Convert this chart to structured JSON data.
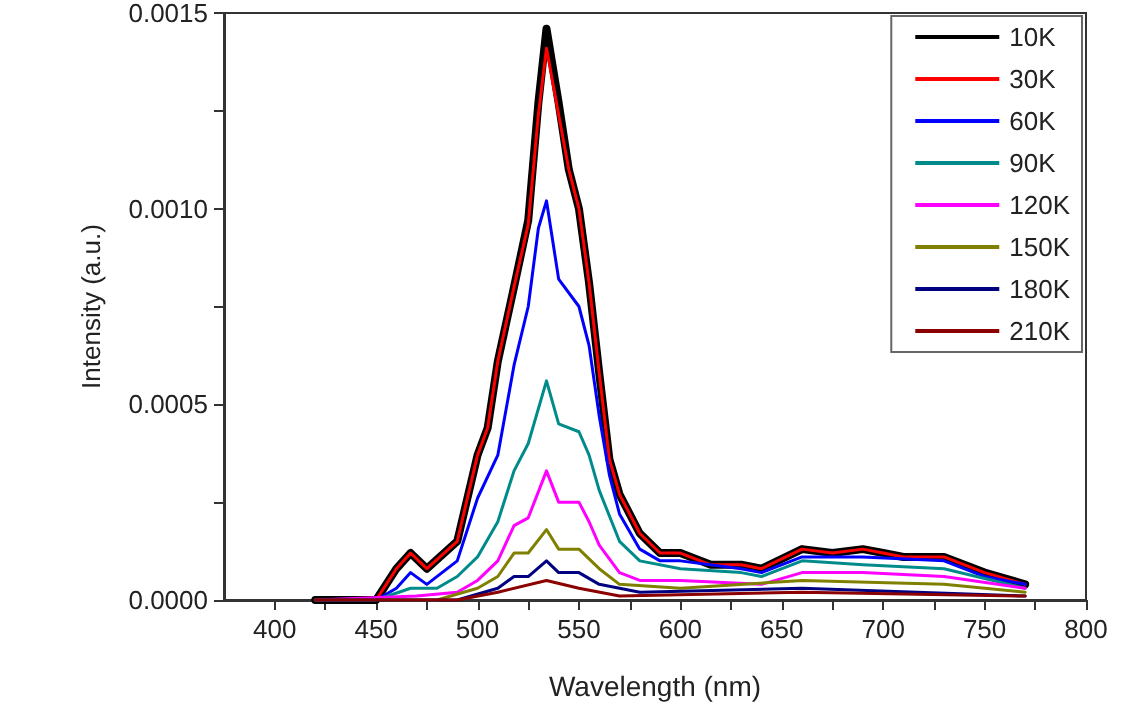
{
  "chart_data": {
    "type": "line",
    "xlabel": "Wavelength (nm)",
    "ylabel": "Intensity (a.u.)",
    "xlim": [
      375,
      800
    ],
    "xticks": [
      {
        "value": 400,
        "label": "400"
      },
      {
        "value": 425,
        "label": null
      },
      {
        "value": 450,
        "label": "450"
      },
      {
        "value": 475,
        "label": null
      },
      {
        "value": 500,
        "label": "500"
      },
      {
        "value": 525,
        "label": null
      },
      {
        "value": 550,
        "label": "550"
      },
      {
        "value": 575,
        "label": null
      },
      {
        "value": 600,
        "label": "600"
      },
      {
        "value": 625,
        "label": null
      },
      {
        "value": 650,
        "label": "650"
      },
      {
        "value": 675,
        "label": null
      },
      {
        "value": 700,
        "label": "700"
      },
      {
        "value": 725,
        "label": null
      },
      {
        "value": 750,
        "label": "750"
      },
      {
        "value": 775,
        "label": null
      },
      {
        "value": 800,
        "label": "800"
      }
    ],
    "ylim": [
      0,
      0.0015
    ],
    "yticks": [
      {
        "value": 0,
        "label": "0.0000"
      },
      {
        "value": 0.00025,
        "label": null
      },
      {
        "value": 0.0005,
        "label": "0.0005"
      },
      {
        "value": 0.00075,
        "label": null
      },
      {
        "value": 0.001,
        "label": "0.0010"
      },
      {
        "value": 0.00125,
        "label": null
      },
      {
        "value": 0.0015,
        "label": "0.0015"
      }
    ],
    "grid": false,
    "legend": "top right",
    "marker": "none",
    "line_style": "solid",
    "series": [
      {
        "name": "10K",
        "color": "#000000",
        "x": [
          420,
          450,
          460,
          467,
          475,
          490,
          500,
          505,
          510,
          518,
          525,
          530,
          534,
          540,
          545,
          550,
          555,
          560,
          565,
          570,
          580,
          590,
          600,
          615,
          630,
          640,
          660,
          675,
          690,
          700,
          710,
          730,
          750,
          770
        ],
        "values": [
          0,
          0,
          8e-05,
          0.00012,
          8e-05,
          0.00015,
          0.00037,
          0.00044,
          0.00061,
          0.0008,
          0.00097,
          0.00127,
          0.00146,
          0.00127,
          0.0011,
          0.001,
          0.00081,
          0.00058,
          0.00036,
          0.00027,
          0.00017,
          0.00012,
          0.00012,
          9e-05,
          9e-05,
          8e-05,
          0.00013,
          0.00012,
          0.00013,
          0.00012,
          0.00011,
          0.00011,
          7e-05,
          4e-05
        ]
      },
      {
        "name": "30K",
        "color": "#ff0000",
        "x": [
          420,
          450,
          460,
          467,
          475,
          490,
          500,
          505,
          510,
          518,
          525,
          530,
          534,
          540,
          545,
          550,
          555,
          560,
          565,
          570,
          580,
          590,
          600,
          615,
          630,
          640,
          660,
          675,
          690,
          700,
          710,
          730,
          750,
          770
        ],
        "values": [
          0,
          0,
          8e-05,
          0.00012,
          8e-05,
          0.00015,
          0.00037,
          0.00044,
          0.00061,
          0.0008,
          0.00096,
          0.00124,
          0.00141,
          0.00124,
          0.0011,
          0.001,
          0.00081,
          0.00058,
          0.00036,
          0.00027,
          0.00017,
          0.00012,
          0.00012,
          9e-05,
          9e-05,
          8e-05,
          0.00013,
          0.00012,
          0.00013,
          0.00012,
          0.00011,
          0.00011,
          7e-05,
          4e-05
        ]
      },
      {
        "name": "60K",
        "color": "#0000ff",
        "x": [
          420,
          450,
          460,
          467,
          475,
          490,
          500,
          510,
          518,
          525,
          530,
          534,
          540,
          550,
          555,
          560,
          565,
          570,
          580,
          590,
          600,
          630,
          640,
          660,
          690,
          730,
          750,
          770
        ],
        "values": [
          0,
          0,
          3e-05,
          7e-05,
          4e-05,
          0.0001,
          0.00026,
          0.00037,
          0.0006,
          0.00075,
          0.00095,
          0.00102,
          0.00082,
          0.00075,
          0.00065,
          0.00047,
          0.00032,
          0.00022,
          0.00013,
          0.0001,
          0.0001,
          8e-05,
          7e-05,
          0.00011,
          0.00011,
          0.0001,
          6e-05,
          4e-05
        ]
      },
      {
        "name": "90K",
        "color": "#008b8b",
        "x": [
          420,
          450,
          467,
          480,
          490,
          500,
          510,
          518,
          525,
          534,
          540,
          550,
          555,
          560,
          570,
          580,
          600,
          630,
          640,
          660,
          690,
          730,
          770
        ],
        "values": [
          0,
          0,
          3e-05,
          3e-05,
          6e-05,
          0.00011,
          0.0002,
          0.00033,
          0.0004,
          0.00056,
          0.00045,
          0.00043,
          0.00037,
          0.00028,
          0.00015,
          0.0001,
          8e-05,
          7e-05,
          6e-05,
          0.0001,
          9e-05,
          8e-05,
          3e-05
        ]
      },
      {
        "name": "120K",
        "color": "#ff00ff",
        "x": [
          420,
          470,
          490,
          500,
          510,
          518,
          525,
          534,
          540,
          550,
          555,
          560,
          570,
          580,
          600,
          640,
          660,
          690,
          730,
          770
        ],
        "values": [
          0,
          1e-05,
          2e-05,
          5e-05,
          0.0001,
          0.00019,
          0.00021,
          0.00033,
          0.00025,
          0.00025,
          0.0002,
          0.00014,
          7e-05,
          5e-05,
          5e-05,
          4e-05,
          7e-05,
          7e-05,
          6e-05,
          3e-05
        ]
      },
      {
        "name": "150K",
        "color": "#808000",
        "x": [
          420,
          480,
          500,
          510,
          518,
          525,
          534,
          540,
          550,
          560,
          570,
          600,
          660,
          730,
          770
        ],
        "values": [
          0,
          0,
          3e-05,
          6e-05,
          0.00012,
          0.00012,
          0.00018,
          0.00013,
          0.00013,
          8e-05,
          4e-05,
          3e-05,
          5e-05,
          4e-05,
          2e-05
        ]
      },
      {
        "name": "180K",
        "color": "#000080",
        "x": [
          420,
          490,
          510,
          518,
          525,
          534,
          540,
          550,
          560,
          580,
          660,
          770
        ],
        "values": [
          0,
          0,
          3e-05,
          6e-05,
          6e-05,
          0.0001,
          7e-05,
          7e-05,
          4e-05,
          2e-05,
          3e-05,
          1e-05
        ]
      },
      {
        "name": "210K",
        "color": "#8b0000",
        "x": [
          420,
          490,
          510,
          534,
          550,
          570,
          660,
          770
        ],
        "values": [
          0,
          0,
          2e-05,
          5e-05,
          3e-05,
          1e-05,
          2e-05,
          1e-05
        ]
      }
    ]
  }
}
